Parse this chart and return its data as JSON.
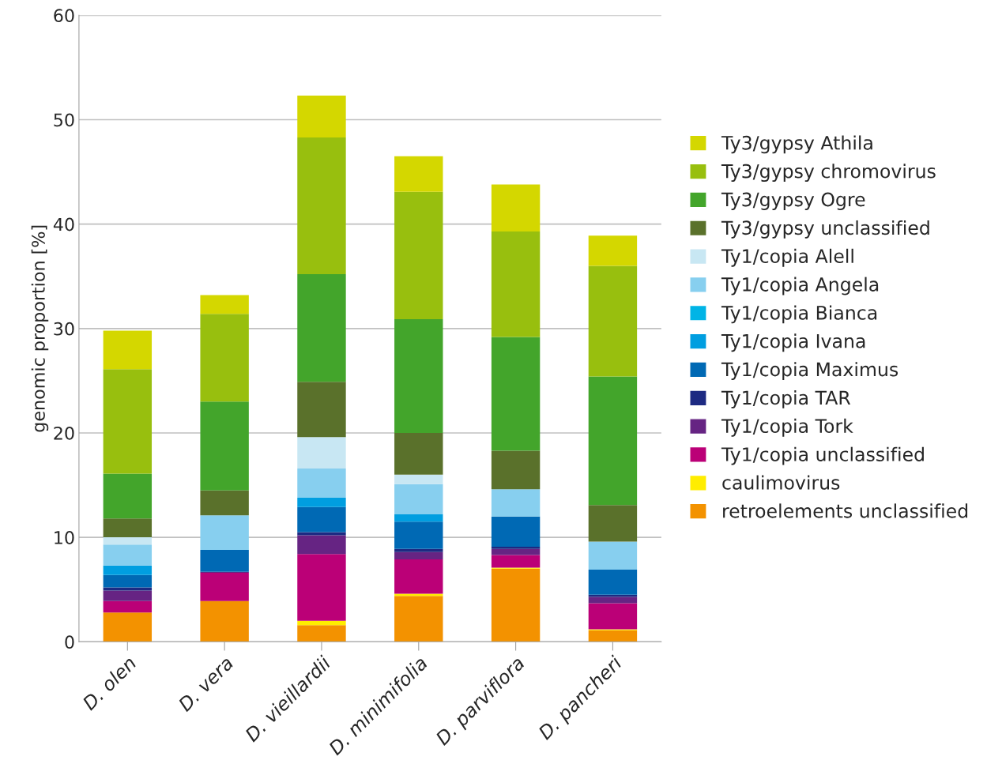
{
  "chart_data": {
    "type": "bar",
    "stacked": true,
    "ylabel": "genomic proportion [%]",
    "categories": [
      "D. olen",
      "D. vera",
      "D. vieillardii",
      "D. minimifolia",
      "D. parviflora",
      "D. pancheri"
    ],
    "ylim": [
      0,
      60
    ],
    "yticks": [
      0,
      10,
      20,
      30,
      40,
      50,
      60
    ],
    "grid": "y",
    "legend": "right",
    "series": [
      {
        "name": "retroelements unclassified",
        "color": "#f39200",
        "values": [
          2.8,
          3.9,
          1.6,
          4.4,
          7.0,
          1.1
        ]
      },
      {
        "name": "caulimovirus",
        "color": "#ffed00",
        "values": [
          0,
          0,
          0.4,
          0.2,
          0.1,
          0.1
        ]
      },
      {
        "name": "Ty1/copia unclassified",
        "color": "#bb0077",
        "values": [
          1.1,
          2.7,
          6.4,
          3.3,
          1.2,
          2.5
        ]
      },
      {
        "name": "Ty1/copia Tork",
        "color": "#662483",
        "values": [
          1.0,
          0.1,
          1.8,
          0.7,
          0.6,
          0.6
        ]
      },
      {
        "name": "Ty1/copia TAR",
        "color": "#1d2a82",
        "values": [
          0.3,
          0,
          0.3,
          0.3,
          0.2,
          0.2
        ]
      },
      {
        "name": "Ty1/copia Maximus",
        "color": "#0069b4",
        "values": [
          1.2,
          2.1,
          2.4,
          2.6,
          2.9,
          2.4
        ]
      },
      {
        "name": "Ty1/copia Ivana",
        "color": "#009ee0",
        "values": [
          0.9,
          0,
          0.9,
          0.7,
          0,
          0
        ]
      },
      {
        "name": "Ty1/copia Bianca",
        "color": "#00b4e6",
        "values": [
          0,
          0,
          0,
          0,
          0,
          0
        ]
      },
      {
        "name": "Ty1/copia Angela",
        "color": "#87cfef",
        "values": [
          2.0,
          3.3,
          2.8,
          2.9,
          2.6,
          2.7
        ]
      },
      {
        "name": "Ty1/copia Alell",
        "color": "#c8e7f3",
        "values": [
          0.7,
          0,
          3.0,
          0.9,
          0,
          0
        ]
      },
      {
        "name": "Ty3/gypsy unclassified",
        "color": "#5a712b",
        "values": [
          1.8,
          2.4,
          5.3,
          4.0,
          3.7,
          3.5
        ]
      },
      {
        "name": "Ty3/gypsy Ogre",
        "color": "#43a52b",
        "values": [
          4.3,
          8.5,
          10.3,
          10.9,
          10.9,
          12.3
        ]
      },
      {
        "name": "Ty3/gypsy chromovirus",
        "color": "#98bf0e",
        "values": [
          10.0,
          8.4,
          13.1,
          12.2,
          10.1,
          10.6
        ]
      },
      {
        "name": "Ty3/gypsy Athila",
        "color": "#d4d700",
        "values": [
          3.7,
          1.8,
          4.0,
          3.4,
          4.5,
          2.9
        ]
      }
    ]
  }
}
